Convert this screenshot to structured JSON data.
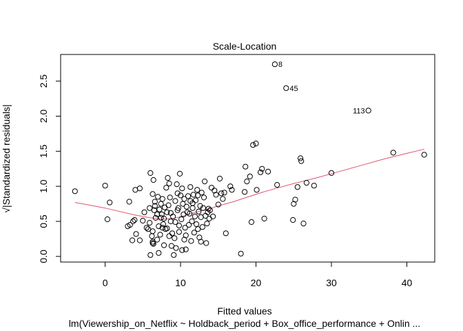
{
  "chart_data": {
    "type": "scatter",
    "title": "Scale-Location",
    "xlabel": "Fitted values",
    "ylabel": "√|Standardized residuals|",
    "subtitle": "lm(Viewership_on_Netflix ~ Holdback_period + Box_office_performance + Onlin ...",
    "xlim": [
      -5.9,
      43.7
    ],
    "ylim": [
      -0.08,
      2.88
    ],
    "x_ticks": [
      0,
      10,
      20,
      30,
      40
    ],
    "x_tick_labels": [
      "0",
      "10",
      "20",
      "30",
      "40"
    ],
    "y_ticks": [
      0.0,
      0.5,
      1.0,
      1.5,
      2.0,
      2.5
    ],
    "y_tick_labels": [
      "0.0",
      "0.5",
      "1.0",
      "1.5",
      "2.0",
      "2.5"
    ],
    "point_color": "#000000",
    "smooth_color": "#DF536B",
    "labeled_points": [
      {
        "label": "8",
        "x": 22.5,
        "y": 2.74
      },
      {
        "label": "45",
        "x": 24.0,
        "y": 2.4
      },
      {
        "label": "113",
        "x": 34.9,
        "y": 2.08
      }
    ],
    "points": [
      [
        -4.0,
        0.93
      ],
      [
        0.0,
        1.01
      ],
      [
        0.6,
        0.77
      ],
      [
        0.3,
        0.53
      ],
      [
        3.0,
        0.43
      ],
      [
        3.3,
        0.45
      ],
      [
        3.7,
        0.5
      ],
      [
        3.9,
        0.52
      ],
      [
        4.1,
        0.32
      ],
      [
        3.6,
        0.23
      ],
      [
        3.2,
        0.78
      ],
      [
        4.0,
        0.95
      ],
      [
        4.6,
        0.97
      ],
      [
        4.6,
        0.23
      ],
      [
        5.0,
        0.51
      ],
      [
        5.2,
        0.63
      ],
      [
        5.5,
        0.41
      ],
      [
        5.7,
        0.39
      ],
      [
        5.9,
        0.69
      ],
      [
        6.0,
        1.19
      ],
      [
        5.9,
        0.48
      ],
      [
        6.0,
        0.02
      ],
      [
        6.2,
        0.29
      ],
      [
        6.3,
        0.19
      ],
      [
        6.3,
        0.89
      ],
      [
        6.4,
        1.09
      ],
      [
        6.3,
        0.36
      ],
      [
        6.5,
        0.66
      ],
      [
        6.6,
        0.78
      ],
      [
        6.7,
        0.55
      ],
      [
        6.9,
        0.6
      ],
      [
        6.9,
        0.24
      ],
      [
        6.3,
        0.21
      ],
      [
        6.4,
        0.18
      ],
      [
        6.6,
        0.72
      ],
      [
        7.0,
        0.85
      ],
      [
        7.1,
        0.43
      ],
      [
        7.2,
        0.67
      ],
      [
        7.3,
        0.31
      ],
      [
        7.4,
        0.55
      ],
      [
        7.5,
        0.6
      ],
      [
        7.6,
        0.82
      ],
      [
        7.7,
        0.46
      ],
      [
        7.8,
        0.16
      ],
      [
        7.9,
        0.7
      ],
      [
        7.1,
        0.05
      ],
      [
        7.4,
        0.75
      ],
      [
        7.6,
        0.41
      ],
      [
        7.8,
        0.54
      ],
      [
        8.0,
        0.39
      ],
      [
        8.1,
        0.98
      ],
      [
        8.2,
        0.63
      ],
      [
        8.3,
        1.12
      ],
      [
        8.4,
        0.73
      ],
      [
        8.5,
        0.29
      ],
      [
        8.6,
        0.84
      ],
      [
        8.7,
        0.5
      ],
      [
        8.8,
        0.15
      ],
      [
        8.9,
        0.33
      ],
      [
        8.2,
        0.4
      ],
      [
        8.5,
        1.04
      ],
      [
        8.7,
        0.62
      ],
      [
        9.0,
        0.57
      ],
      [
        9.1,
        0.02
      ],
      [
        9.2,
        0.26
      ],
      [
        9.3,
        0.79
      ],
      [
        9.4,
        0.12
      ],
      [
        9.5,
        1.03
      ],
      [
        9.6,
        0.9
      ],
      [
        9.7,
        0.69
      ],
      [
        9.8,
        0.44
      ],
      [
        9.9,
        1.18
      ],
      [
        9.3,
        0.49
      ],
      [
        9.6,
        0.66
      ],
      [
        9.8,
        0.35
      ],
      [
        10.0,
        0.87
      ],
      [
        10.1,
        0.53
      ],
      [
        10.2,
        0.09
      ],
      [
        10.3,
        0.75
      ],
      [
        10.4,
        0.6
      ],
      [
        10.5,
        0.82
      ],
      [
        10.6,
        0.41
      ],
      [
        10.7,
        0.3
      ],
      [
        10.8,
        0.71
      ],
      [
        10.9,
        0.63
      ],
      [
        10.2,
        0.97
      ],
      [
        10.5,
        0.24
      ],
      [
        10.7,
        0.1
      ],
      [
        11.0,
        0.86
      ],
      [
        11.1,
        0.45
      ],
      [
        11.2,
        0.61
      ],
      [
        11.3,
        0.79
      ],
      [
        11.4,
        0.22
      ],
      [
        11.5,
        0.5
      ],
      [
        11.6,
        0.69
      ],
      [
        11.7,
        0.88
      ],
      [
        11.8,
        0.34
      ],
      [
        11.9,
        0.57
      ],
      [
        11.3,
        0.99
      ],
      [
        11.6,
        0.76
      ],
      [
        12.0,
        0.8
      ],
      [
        12.1,
        0.46
      ],
      [
        12.2,
        0.95
      ],
      [
        12.3,
        0.39
      ],
      [
        12.4,
        0.64
      ],
      [
        12.5,
        0.27
      ],
      [
        12.6,
        0.72
      ],
      [
        12.7,
        0.56
      ],
      [
        12.8,
        0.91
      ],
      [
        12.9,
        0.42
      ],
      [
        12.3,
        0.87
      ],
      [
        12.7,
        0.21
      ],
      [
        13.0,
        0.69
      ],
      [
        13.1,
        0.84
      ],
      [
        13.2,
        1.07
      ],
      [
        13.3,
        0.58
      ],
      [
        13.4,
        0.19
      ],
      [
        13.5,
        0.47
      ],
      [
        13.6,
        0.63
      ],
      [
        13.7,
        0.68
      ],
      [
        13.8,
        0.54
      ],
      [
        13.9,
        0.66
      ],
      [
        14.1,
        0.98
      ],
      [
        14.3,
        0.57
      ],
      [
        14.5,
        0.94
      ],
      [
        14.7,
        0.88
      ],
      [
        15.0,
        0.74
      ],
      [
        15.2,
        1.11
      ],
      [
        15.4,
        0.9
      ],
      [
        15.6,
        0.82
      ],
      [
        15.8,
        0.91
      ],
      [
        16.0,
        0.33
      ],
      [
        16.6,
        1.0
      ],
      [
        16.8,
        0.95
      ],
      [
        18.0,
        0.04
      ],
      [
        18.5,
        0.92
      ],
      [
        18.6,
        1.28
      ],
      [
        18.8,
        1.07
      ],
      [
        19.2,
        1.14
      ],
      [
        19.4,
        0.49
      ],
      [
        19.6,
        1.59
      ],
      [
        20.0,
        1.61
      ],
      [
        20.1,
        0.95
      ],
      [
        20.6,
        1.2
      ],
      [
        20.8,
        1.25
      ],
      [
        21.1,
        0.54
      ],
      [
        21.6,
        1.21
      ],
      [
        22.8,
        1.02
      ],
      [
        24.9,
        0.52
      ],
      [
        25.0,
        0.75
      ],
      [
        25.2,
        0.81
      ],
      [
        25.5,
        0.99
      ],
      [
        25.9,
        1.4
      ],
      [
        26.0,
        1.36
      ],
      [
        26.3,
        0.47
      ],
      [
        26.7,
        1.05
      ],
      [
        27.7,
        1.01
      ],
      [
        30.0,
        1.19
      ],
      [
        38.2,
        1.48
      ],
      [
        42.3,
        1.45
      ],
      [
        22.5,
        2.74
      ],
      [
        24.0,
        2.4
      ],
      [
        34.9,
        2.08
      ]
    ],
    "smooth_line": [
      [
        -4.0,
        0.77
      ],
      [
        -2.0,
        0.73
      ],
      [
        0.0,
        0.69
      ],
      [
        2.0,
        0.64
      ],
      [
        4.0,
        0.59
      ],
      [
        6.0,
        0.55
      ],
      [
        7.5,
        0.53
      ],
      [
        9.0,
        0.54
      ],
      [
        10.5,
        0.58
      ],
      [
        12.0,
        0.63
      ],
      [
        13.5,
        0.67
      ],
      [
        15.0,
        0.72
      ],
      [
        17.0,
        0.78
      ],
      [
        19.0,
        0.85
      ],
      [
        21.0,
        0.92
      ],
      [
        23.0,
        0.98
      ],
      [
        25.0,
        1.04
      ],
      [
        28.0,
        1.12
      ],
      [
        31.0,
        1.21
      ],
      [
        34.0,
        1.3
      ],
      [
        37.0,
        1.39
      ],
      [
        40.0,
        1.47
      ],
      [
        42.3,
        1.53
      ]
    ]
  }
}
